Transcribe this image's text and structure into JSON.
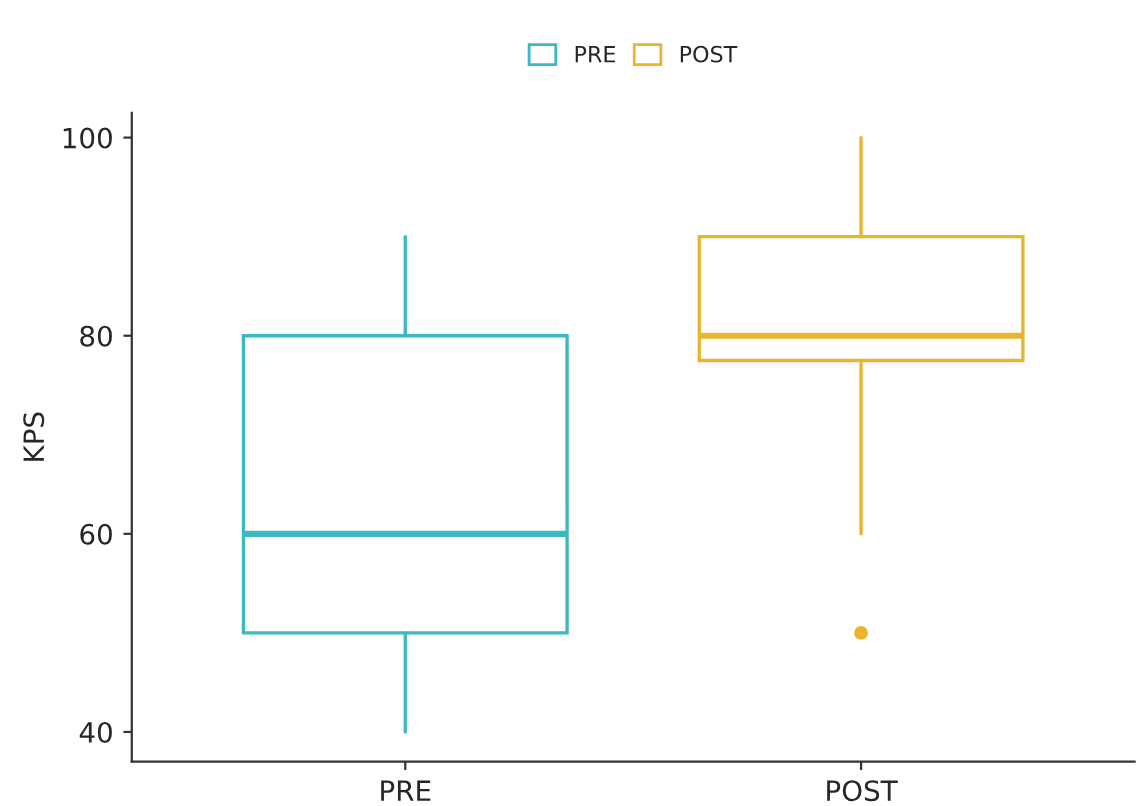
{
  "chart_data": {
    "type": "box",
    "categories": [
      "PRE",
      "POST"
    ],
    "ylabel": "KPS",
    "series": [
      {
        "name": "PRE",
        "color": "#3cb8c0",
        "boxes": [
          {
            "low": 40,
            "q1": 50,
            "median": 60,
            "q3": 80,
            "high": 90
          },
          null
        ]
      },
      {
        "name": "POST",
        "color": "#e8b52c",
        "boxes": [
          null,
          {
            "low": 60,
            "q1": 77.5,
            "median": 80,
            "q3": 90,
            "high": 100,
            "outliers": [
              50
            ]
          }
        ]
      }
    ],
    "ylim": [
      37,
      102.5
    ],
    "yticks": [
      40,
      60,
      80,
      100
    ],
    "legend": "top"
  }
}
